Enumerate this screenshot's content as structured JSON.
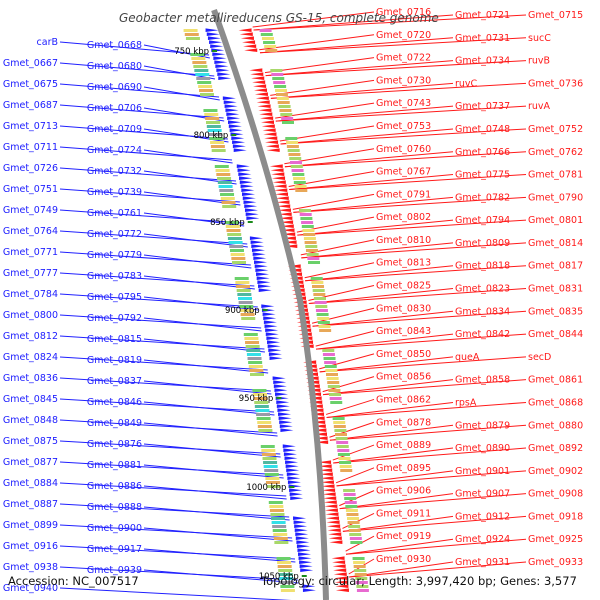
{
  "title": "Geobacter metallireducens GS-15, complete genome",
  "accession": "Accession: NC_007517",
  "stats": "Topology: circular; Length: 3,997,420 bp; Genes: 3,577",
  "colors": {
    "forward": "#2020ff",
    "reverse": "#ff1a1a",
    "backbone": "#8c8c8c",
    "tick": "#1a8a1a"
  },
  "kbp_marks": [
    "750 kbp",
    "800 kbp",
    "850 kbp",
    "900 kbp",
    "950 kbp",
    "1000 kbp",
    "1050 kbp"
  ],
  "left_labels": [
    "carB",
    "Gmet_0668",
    "Gmet_0667",
    "Gmet_0680",
    "Gmet_0675",
    "Gmet_0690",
    "Gmet_0687",
    "Gmet_0706",
    "Gmet_0713",
    "Gmet_0709",
    "Gmet_0711",
    "Gmet_0724",
    "Gmet_0726",
    "Gmet_0732",
    "Gmet_0751",
    "Gmet_0739",
    "Gmet_0749",
    "Gmet_0761",
    "Gmet_0764",
    "Gmet_0772",
    "Gmet_0771",
    "Gmet_0779",
    "Gmet_0777",
    "Gmet_0783",
    "Gmet_0784",
    "Gmet_0795",
    "Gmet_0800",
    "Gmet_0792",
    "Gmet_0812",
    "Gmet_0815",
    "Gmet_0824",
    "Gmet_0819",
    "Gmet_0836",
    "Gmet_0837",
    "Gmet_0845",
    "Gmet_0846",
    "Gmet_0848",
    "Gmet_0849",
    "Gmet_0875",
    "Gmet_0876",
    "Gmet_0877",
    "Gmet_0881",
    "Gmet_0884",
    "Gmet_0886",
    "Gmet_0887",
    "Gmet_0888",
    "Gmet_0899",
    "Gmet_0900",
    "Gmet_0916",
    "Gmet_0917",
    "Gmet_0938",
    "Gmet_0939",
    "Gmet_0940"
  ],
  "right_labels": [
    "Gmet_0716",
    "Gmet_0721",
    "Gmet_0715",
    "Gmet_0720",
    "Gmet_0731",
    "sucC",
    "Gmet_0722",
    "Gmet_0734",
    "ruvB",
    "Gmet_0730",
    "ruvC",
    "Gmet_0736",
    "Gmet_0743",
    "Gmet_0737",
    "ruvA",
    "Gmet_0753",
    "Gmet_0748",
    "Gmet_0752",
    "Gmet_0760",
    "Gmet_0766",
    "Gmet_0762",
    "Gmet_0767",
    "Gmet_0775",
    "Gmet_0781",
    "Gmet_0791",
    "Gmet_0782",
    "Gmet_0790",
    "Gmet_0802",
    "Gmet_0794",
    "Gmet_0801",
    "Gmet_0810",
    "Gmet_0809",
    "Gmet_0814",
    "Gmet_0813",
    "Gmet_0818",
    "Gmet_0817",
    "Gmet_0825",
    "Gmet_0823",
    "Gmet_0831",
    "Gmet_0830",
    "Gmet_0834",
    "Gmet_0835",
    "Gmet_0843",
    "Gmet_0842",
    "Gmet_0844",
    "Gmet_0850",
    "queA",
    "secD",
    "Gmet_0856",
    "Gmet_0858",
    "Gmet_0861",
    "Gmet_0862",
    "rpsA",
    "Gmet_0868",
    "Gmet_0878",
    "Gmet_0879",
    "Gmet_0880",
    "Gmet_0889",
    "Gmet_0890",
    "Gmet_0892",
    "Gmet_0895",
    "Gmet_0901",
    "Gmet_0902",
    "Gmet_0906",
    "Gmet_0907",
    "Gmet_0908",
    "Gmet_0911",
    "Gmet_0912",
    "Gmet_0918",
    "Gmet_0919",
    "Gmet_0924",
    "Gmet_0925",
    "Gmet_0930",
    "Gmet_0931",
    "Gmet_0933"
  ]
}
